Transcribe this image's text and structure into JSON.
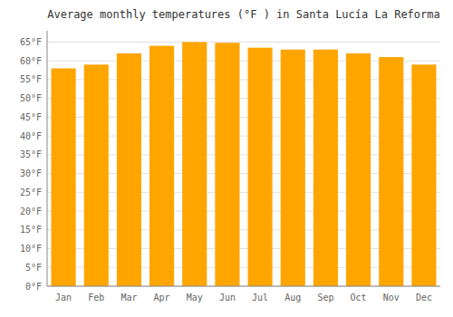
{
  "chart_data": {
    "type": "bar",
    "title": "Average monthly temperatures (°F ) in Santa Lucía La Reforma",
    "categories": [
      "Jan",
      "Feb",
      "Mar",
      "Apr",
      "May",
      "Jun",
      "Jul",
      "Aug",
      "Sep",
      "Oct",
      "Nov",
      "Dec"
    ],
    "values": [
      58.0,
      59.0,
      62.0,
      64.0,
      65.0,
      64.8,
      63.5,
      63.0,
      63.0,
      62.0,
      61.0,
      59.0
    ],
    "color": "#FFA500",
    "ylim": [
      0,
      68
    ],
    "yticks": [
      {
        "value": 0,
        "label": "0°F"
      },
      {
        "value": 5,
        "label": "5°F"
      },
      {
        "value": 10,
        "label": "10°F"
      },
      {
        "value": 15,
        "label": "15°F"
      },
      {
        "value": 20,
        "label": "20°F"
      },
      {
        "value": 25,
        "label": "25°F"
      },
      {
        "value": 30,
        "label": "30°F"
      },
      {
        "value": 35,
        "label": "35°F"
      },
      {
        "value": 40,
        "label": "40°F"
      },
      {
        "value": 45,
        "label": "45°F"
      },
      {
        "value": 50,
        "label": "50°F"
      },
      {
        "value": 55,
        "label": "55°F"
      },
      {
        "value": 60,
        "label": "60°F"
      },
      {
        "value": 65,
        "label": "65°F"
      }
    ],
    "grid": true
  }
}
